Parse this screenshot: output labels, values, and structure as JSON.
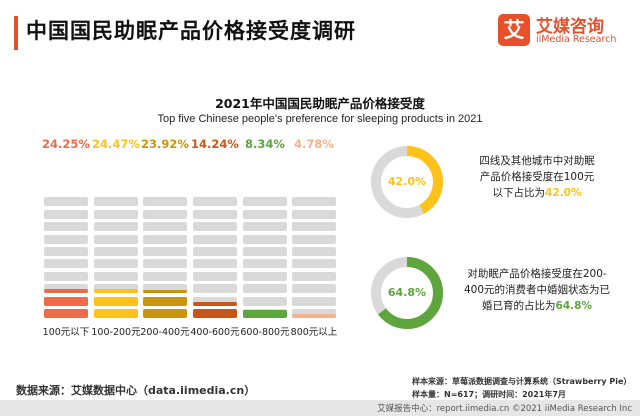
{
  "header": {
    "title": "中国国民助眠产品价格接受度调研",
    "logo_mark": "艾",
    "logo_cn": "艾媒咨询",
    "logo_en": "iiMedia Research"
  },
  "chart_data": {
    "type": "bar",
    "title": "2021年中国国民助眠产品价格接受度",
    "subtitle": "Top five Chinese people's preference for sleeping products in 2021",
    "categories": [
      "100元以下",
      "100-200元",
      "200-400元",
      "400-600元",
      "600-800元",
      "800元以上"
    ],
    "values": [
      24.25,
      24.47,
      23.92,
      14.24,
      8.34,
      4.78
    ],
    "value_labels": [
      "24.25%",
      "24.47%",
      "23.92%",
      "14.24%",
      "8.34%",
      "4.78%"
    ],
    "unit": "%",
    "colors": [
      "#ef6a48",
      "#ffc21a",
      "#c9950f",
      "#c8561a",
      "#5ea53d",
      "#f5b28c"
    ],
    "track_color": "#d9d9d9",
    "ylim": [
      0,
      100
    ],
    "grid": false,
    "legend": "none"
  },
  "rings": [
    {
      "value": 42.0,
      "label": "42.0%",
      "color": "#ffc21a",
      "text_lines": [
        "四线及其他城市中对助眠",
        "产品价格接受度在100元"
      ],
      "text_last_prefix": "以下占比为",
      "text_last_value": "42.0%"
    },
    {
      "value": 64.8,
      "label": "64.8%",
      "color": "#5ea53d",
      "text_lines": [
        "对助眠产品价格接受度在200-",
        "400元的消费者中婚姻状态为已"
      ],
      "text_last_prefix": "婚已育的占比为",
      "text_last_value": "64.8%"
    }
  ],
  "ring_track_color": "#d9d9d9",
  "source": "数据来源：艾媒数据中心（data.iimedia.cn）",
  "notes": {
    "sample_source": "样本来源：草莓派数据调查与计算系统（Strawberry Pie）",
    "sample_info": "样本量：N=617；调研时间：2021年7月"
  },
  "footer": "艾媒报告中心：report.iimedia.cn    ©2021  iiMedia Research  Inc"
}
